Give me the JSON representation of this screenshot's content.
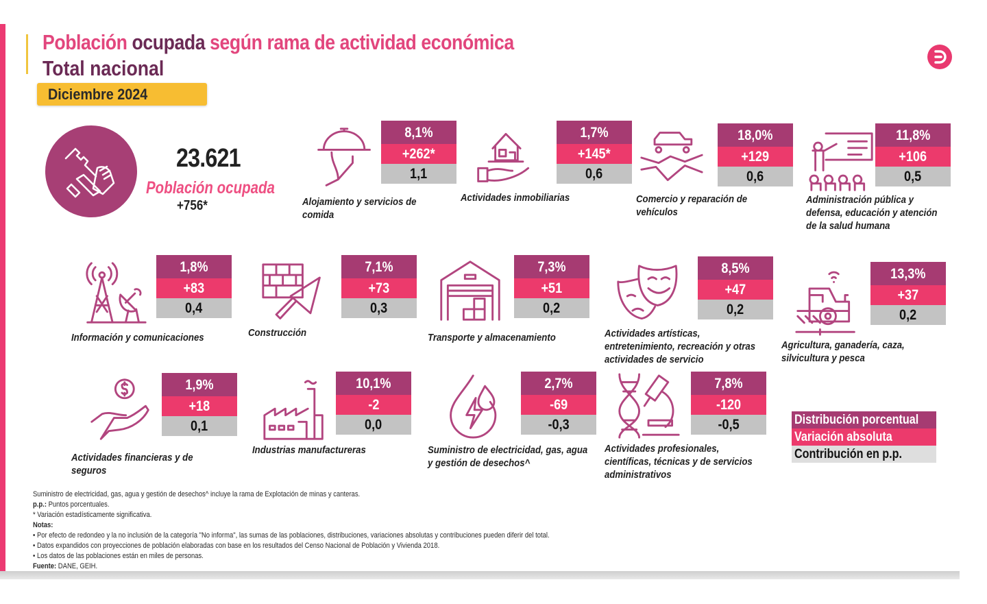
{
  "header": {
    "title_part1": "Población",
    "title_part2": "ocupada",
    "title_part3": "según rama de actividad económica",
    "subtitle": "Total nacional",
    "period": "Diciembre 2024",
    "logo_icon": "dane-logo-icon"
  },
  "summary": {
    "icon": "worker-tools-icon",
    "total": "23.621",
    "label": "Población ocupada",
    "variation": "+756*"
  },
  "colors": {
    "distribution": "#a63b72",
    "variation": "#ec3a6c",
    "contribution": "#c3c3c3",
    "accent_yellow": "#f7bd32",
    "accent_pink": "#ec3a72"
  },
  "sectors": [
    {
      "name": "Alojamiento y servicios de comida",
      "lines": [
        "Alojamiento y servicios de",
        "comida"
      ],
      "icon": "cloche-serving-icon",
      "pct": "8,1%",
      "var": "+262*",
      "contrib": "1,1"
    },
    {
      "name": "Actividades inmobiliarias",
      "lines": [
        "Actividades inmobiliarias"
      ],
      "icon": "house-in-hand-icon",
      "pct": "1,7%",
      "var": "+145*",
      "contrib": "0,6"
    },
    {
      "name": "Comercio y reparación de vehículos",
      "lines": [
        "Comercio y reparación de",
        "vehículos"
      ],
      "icon": "handshake-car-icon",
      "pct": "18,0%",
      "var": "+129",
      "contrib": "0,6"
    },
    {
      "name": "Administración pública y defensa, educación y atención de la salud humana",
      "lines": [
        "Administración pública y",
        "defensa, educación y atención",
        "de la salud humana"
      ],
      "icon": "teacher-class-icon",
      "pct": "11,8%",
      "var": "+106",
      "contrib": "0,5"
    },
    {
      "name": "Información y comunicaciones",
      "lines": [
        "Información y comunicaciones"
      ],
      "icon": "antenna-satellite-icon",
      "pct": "1,8%",
      "var": "+83",
      "contrib": "0,4"
    },
    {
      "name": "Construcción",
      "lines": [
        "Construcción"
      ],
      "icon": "brick-trowel-icon",
      "pct": "7,1%",
      "var": "+73",
      "contrib": "0,3"
    },
    {
      "name": "Transporte y almacenamiento",
      "lines": [
        "Transporte y almacenamiento"
      ],
      "icon": "warehouse-icon",
      "pct": "7,3%",
      "var": "+51",
      "contrib": "0,2"
    },
    {
      "name": "Actividades artísticas, entretenimiento, recreación y otras actividades de servicio",
      "lines": [
        "Actividades artísticas,",
        "entretenimiento, recreación y otras",
        "actividades de servicio"
      ],
      "icon": "theater-masks-icon",
      "pct": "8,5%",
      "var": "+47",
      "contrib": "0,2"
    },
    {
      "name": "Agricultura, ganadería, caza, silvicultura y pesca",
      "lines": [
        "Agricultura, ganadería, caza,",
        "silvicultura y pesca"
      ],
      "icon": "tractor-icon",
      "pct": "13,3%",
      "var": "+37",
      "contrib": "0,2"
    },
    {
      "name": "Actividades financieras y de seguros",
      "lines": [
        "Actividades financieras y de",
        "seguros"
      ],
      "icon": "money-hand-icon",
      "pct": "1,9%",
      "var": "+18",
      "contrib": "0,1"
    },
    {
      "name": "Industrias manufactureras",
      "lines": [
        "Industrias manufactureras"
      ],
      "icon": "factory-icon",
      "pct": "10,1%",
      "var": "-2",
      "contrib": "0,0"
    },
    {
      "name": "Suministro de electricidad, gas, agua y gestión de desechos^",
      "lines": [
        "Suministro de electricidad, gas, agua",
        "y gestión de desechos^"
      ],
      "icon": "energy-drop-icon",
      "pct": "2,7%",
      "var": "-69",
      "contrib": "-0,3"
    },
    {
      "name": "Actividades profesionales, científicas, técnicas y de servicios administrativos",
      "lines": [
        "Actividades profesionales,",
        "científicas, técnicas y de servicios",
        "administrativos"
      ],
      "icon": "dna-microscope-icon",
      "pct": "7,8%",
      "var": "-120",
      "contrib": "-0,5"
    }
  ],
  "legend": {
    "distribution": "Distribución porcentual",
    "variation": "Variación absoluta",
    "contribution": "Contribución en p.p."
  },
  "notes": {
    "line1": "Suministro de electricidad, gas, agua y gestión de desechos^ incluye la rama de Explotación de minas y canteras.",
    "pp_label": "p.p.:",
    "pp_text": " Puntos porcentuales.",
    "significance": "* Variación estadísticamente significativa.",
    "notes_label": "Notas:",
    "bullet1": "• Por efecto de redondeo y la no inclusión de la categoría \"No informa\", las sumas de las poblaciones, distribuciones, variaciones absolutas y contribuciones pueden diferir del total.",
    "bullet2": "• Datos expandidos con proyecciones de población elaboradas con base en los resultados del Censo Nacional de Población y Vivienda 2018.",
    "bullet3": "• Los datos de las poblaciones están en miles de personas.",
    "source_label": "Fuente:",
    "source_text": " DANE, GEIH."
  }
}
